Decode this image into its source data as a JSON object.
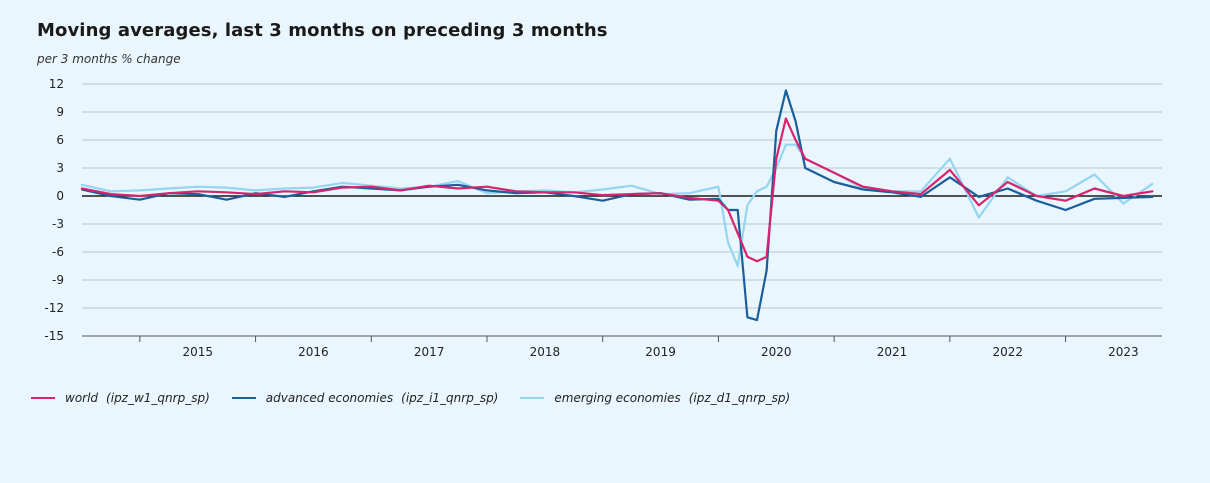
{
  "chart_data": {
    "type": "line",
    "title": "Moving averages, last 3 months on preceding 3 months",
    "subtitle": "per 3 months % change",
    "ylim": [
      -15,
      12
    ],
    "yticks": [
      12,
      9,
      6,
      3,
      0,
      -3,
      -6,
      -9,
      -12,
      -15
    ],
    "x_start": "2014-07",
    "x_end": "2023-11",
    "year_labels": [
      "2015",
      "2016",
      "2017",
      "2018",
      "2019",
      "2020",
      "2021",
      "2022",
      "2023"
    ],
    "x": [
      "2014-07",
      "2014-10",
      "2015-01",
      "2015-04",
      "2015-07",
      "2015-10",
      "2016-01",
      "2016-04",
      "2016-07",
      "2016-10",
      "2017-01",
      "2017-04",
      "2017-07",
      "2017-10",
      "2018-01",
      "2018-04",
      "2018-07",
      "2018-10",
      "2019-01",
      "2019-04",
      "2019-07",
      "2019-10",
      "2020-01",
      "2020-02",
      "2020-03",
      "2020-04",
      "2020-05",
      "2020-06",
      "2020-07",
      "2020-08",
      "2020-09",
      "2020-10",
      "2021-01",
      "2021-04",
      "2021-07",
      "2021-10",
      "2022-01",
      "2022-04",
      "2022-07",
      "2022-10",
      "2023-01",
      "2023-04",
      "2023-07",
      "2023-10"
    ],
    "series": [
      {
        "name": "world",
        "code": "(ipz_w1_qnrp_sp)",
        "color": "#d6246e",
        "values": [
          0.8,
          0.2,
          0.0,
          0.3,
          0.5,
          0.4,
          0.2,
          0.5,
          0.4,
          0.9,
          1.0,
          0.6,
          1.1,
          0.8,
          1.0,
          0.5,
          0.4,
          0.4,
          0.1,
          0.2,
          0.3,
          -0.2,
          -0.5,
          -1.5,
          -4.0,
          -6.5,
          -7.0,
          -6.5,
          4.0,
          8.3,
          6.0,
          4.0,
          2.5,
          1.0,
          0.5,
          0.2,
          2.8,
          -1.0,
          1.5,
          0.0,
          -0.5,
          0.8,
          0.0,
          0.5
        ]
      },
      {
        "name": "advanced economies",
        "code": "(ipz_i1_qnrp_sp)",
        "color": "#1a5e9a",
        "values": [
          0.7,
          0.0,
          -0.4,
          0.3,
          0.2,
          -0.4,
          0.3,
          -0.1,
          0.5,
          1.0,
          0.8,
          0.6,
          1.0,
          1.2,
          0.6,
          0.3,
          0.4,
          0.0,
          -0.5,
          0.2,
          0.3,
          -0.4,
          -0.3,
          -1.5,
          -1.5,
          -13.0,
          -13.3,
          -8.0,
          7.0,
          11.3,
          8.0,
          3.0,
          1.5,
          0.7,
          0.4,
          -0.1,
          2.0,
          -0.1,
          0.8,
          -0.5,
          -1.5,
          -0.3,
          -0.2,
          -0.1
        ]
      },
      {
        "name": "emerging economies",
        "code": "(ipz_d1_qnrp_sp)",
        "color": "#93d5f2",
        "values": [
          1.2,
          0.5,
          0.6,
          0.8,
          1.0,
          0.9,
          0.6,
          0.8,
          0.9,
          1.4,
          1.1,
          0.8,
          1.0,
          1.6,
          0.3,
          0.5,
          0.6,
          0.4,
          0.7,
          1.1,
          0.2,
          0.3,
          1.0,
          -5.0,
          -7.5,
          -1.0,
          0.5,
          1.0,
          3.0,
          5.5,
          5.5,
          4.0,
          2.5,
          0.8,
          0.5,
          0.5,
          4.0,
          -2.3,
          2.0,
          0.0,
          0.5,
          2.3,
          -0.8,
          1.3
        ]
      }
    ],
    "legend_position": "bottom-left",
    "grid": true
  }
}
